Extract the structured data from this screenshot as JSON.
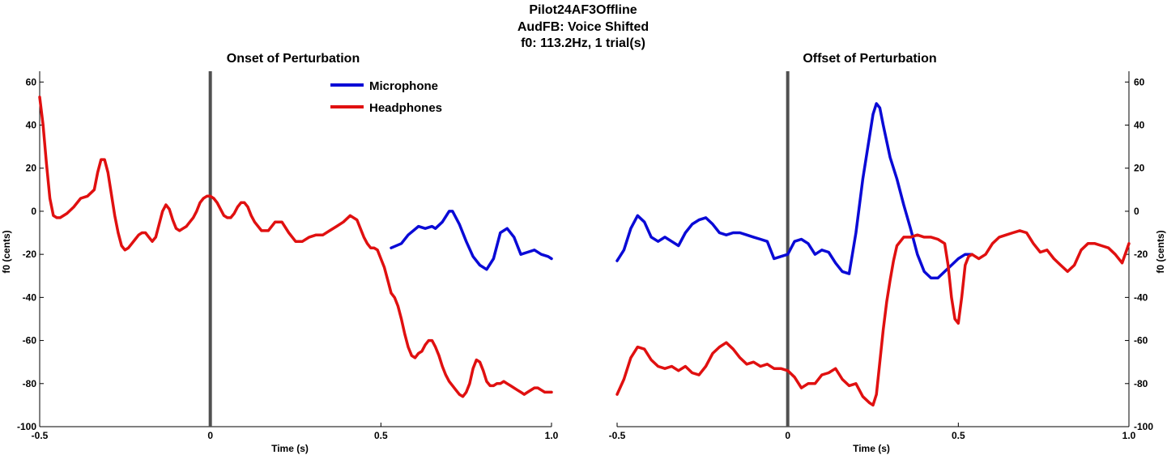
{
  "figure": {
    "title_lines": [
      "Pilot24AF3Offline",
      "AudFB: Voice Shifted",
      "f0: 113.2Hz, 1 trial(s)"
    ]
  },
  "colors": {
    "microphone": "#0a0ad6",
    "headphones": "#e01010",
    "event_line": "#505050"
  },
  "chart_data": [
    {
      "type": "line",
      "title": "Onset of Perturbation",
      "xlabel": "Time (s)",
      "ylabel": "f0 (cents)",
      "xlim": [
        -0.5,
        1.0
      ],
      "ylim": [
        -100,
        65
      ],
      "xticks": [
        -0.5,
        0,
        0.5,
        1.0
      ],
      "xtick_labels": [
        "-0.5",
        "0",
        "0.5",
        "1.0"
      ],
      "yticks": [
        -100,
        -80,
        -60,
        -40,
        -20,
        0,
        20,
        40,
        60
      ],
      "yaxis_side": "left",
      "grid": false,
      "vline_x": 0,
      "legend": {
        "position": "top-center",
        "entries": [
          "Microphone",
          "Headphones"
        ]
      },
      "series": [
        {
          "name": "Microphone",
          "color_key": "microphone",
          "x": [
            0.53,
            0.56,
            0.58,
            0.61,
            0.63,
            0.65,
            0.66,
            0.68,
            0.7,
            0.71,
            0.73,
            0.75,
            0.77,
            0.79,
            0.81,
            0.83,
            0.85,
            0.87,
            0.89,
            0.91,
            0.93,
            0.95,
            0.97,
            0.99,
            1.0
          ],
          "y": [
            -17,
            -15,
            -11,
            -7,
            -8,
            -7,
            -8,
            -5,
            0,
            0,
            -6,
            -14,
            -21,
            -25,
            -27,
            -22,
            -10,
            -8,
            -12,
            -20,
            -19,
            -18,
            -20,
            -21,
            -22
          ]
        },
        {
          "name": "Headphones",
          "x": [
            -0.5,
            -0.49,
            -0.48,
            -0.47,
            -0.46,
            -0.45,
            -0.44,
            -0.42,
            -0.4,
            -0.38,
            -0.36,
            -0.34,
            -0.33,
            -0.32,
            -0.31,
            -0.3,
            -0.29,
            -0.28,
            -0.27,
            -0.26,
            -0.25,
            -0.24,
            -0.23,
            -0.22,
            -0.21,
            -0.2,
            -0.19,
            -0.18,
            -0.17,
            -0.16,
            -0.15,
            -0.14,
            -0.13,
            -0.12,
            -0.11,
            -0.1,
            -0.09,
            -0.08,
            -0.07,
            -0.06,
            -0.05,
            -0.04,
            -0.03,
            -0.02,
            -0.01,
            0.0,
            0.01,
            0.02,
            0.03,
            0.04,
            0.05,
            0.06,
            0.07,
            0.08,
            0.09,
            0.1,
            0.11,
            0.12,
            0.13,
            0.15,
            0.17,
            0.19,
            0.21,
            0.23,
            0.25,
            0.27,
            0.29,
            0.31,
            0.33,
            0.35,
            0.37,
            0.39,
            0.41,
            0.43,
            0.45,
            0.46,
            0.47,
            0.48,
            0.49,
            0.5,
            0.51,
            0.52,
            0.53,
            0.54,
            0.55,
            0.56,
            0.57,
            0.58,
            0.59,
            0.6,
            0.61,
            0.62,
            0.63,
            0.64,
            0.65,
            0.66,
            0.67,
            0.68,
            0.69,
            0.7,
            0.71,
            0.72,
            0.73,
            0.74,
            0.75,
            0.76,
            0.77,
            0.78,
            0.79,
            0.8,
            0.81,
            0.82,
            0.83,
            0.84,
            0.85,
            0.86,
            0.87,
            0.88,
            0.89,
            0.9,
            0.91,
            0.92,
            0.93,
            0.94,
            0.95,
            0.96,
            0.97,
            0.98,
            0.99,
            1.0
          ],
          "color_key": "headphones",
          "y": [
            53,
            40,
            22,
            6,
            -2,
            -3,
            -3,
            -1,
            2,
            6,
            7,
            10,
            18,
            24,
            24,
            18,
            8,
            -2,
            -10,
            -16,
            -18,
            -17,
            -15,
            -13,
            -11,
            -10,
            -10,
            -12,
            -14,
            -12,
            -6,
            0,
            3,
            1,
            -4,
            -8,
            -9,
            -8,
            -7,
            -5,
            -3,
            0,
            4,
            6,
            7,
            7,
            6,
            4,
            1,
            -2,
            -3,
            -3,
            -1,
            2,
            4,
            4,
            2,
            -2,
            -5,
            -9,
            -9,
            -5,
            -5,
            -10,
            -14,
            -14,
            -12,
            -11,
            -11,
            -9,
            -7,
            -5,
            -2,
            -4,
            -12,
            -15,
            -17,
            -17,
            -18,
            -22,
            -26,
            -32,
            -38,
            -40,
            -44,
            -50,
            -57,
            -63,
            -67,
            -68,
            -66,
            -65,
            -62,
            -60,
            -60,
            -63,
            -67,
            -72,
            -76,
            -79,
            -81,
            -83,
            -85,
            -86,
            -84,
            -80,
            -73,
            -69,
            -70,
            -74,
            -79,
            -81,
            -81,
            -80,
            -80,
            -79,
            -80,
            -81,
            -82,
            -83,
            -84,
            -85,
            -84,
            -83,
            -82,
            -82,
            -83,
            -84,
            -84,
            -84
          ]
        }
      ]
    },
    {
      "type": "line",
      "title": "Offset of Perturbation",
      "xlabel": "Time (s)",
      "ylabel": "f0 (cents)",
      "xlim": [
        -0.5,
        1.0
      ],
      "ylim": [
        -100,
        65
      ],
      "xticks": [
        -0.5,
        0,
        0.5,
        1.0
      ],
      "xtick_labels": [
        "-0.5",
        "0",
        "0.5",
        "1.0"
      ],
      "yticks": [
        -100,
        -80,
        -60,
        -40,
        -20,
        0,
        20,
        40,
        60
      ],
      "yaxis_side": "right",
      "grid": false,
      "vline_x": 0,
      "series": [
        {
          "name": "Microphone",
          "color_key": "microphone",
          "x": [
            -0.5,
            -0.48,
            -0.46,
            -0.44,
            -0.42,
            -0.4,
            -0.38,
            -0.36,
            -0.34,
            -0.32,
            -0.3,
            -0.28,
            -0.26,
            -0.24,
            -0.22,
            -0.2,
            -0.18,
            -0.16,
            -0.14,
            -0.12,
            -0.1,
            -0.08,
            -0.06,
            -0.04,
            -0.02,
            0.0,
            0.02,
            0.04,
            0.06,
            0.08,
            0.1,
            0.12,
            0.14,
            0.16,
            0.18,
            0.2,
            0.22,
            0.24,
            0.25,
            0.26,
            0.27,
            0.28,
            0.3,
            0.32,
            0.34,
            0.36,
            0.38,
            0.4,
            0.42,
            0.44,
            0.46,
            0.48,
            0.5,
            0.52,
            0.54
          ],
          "y": [
            -23,
            -18,
            -8,
            -2,
            -5,
            -12,
            -14,
            -12,
            -14,
            -16,
            -10,
            -6,
            -4,
            -3,
            -6,
            -10,
            -11,
            -10,
            -10,
            -11,
            -12,
            -13,
            -14,
            -22,
            -21,
            -20,
            -14,
            -13,
            -15,
            -20,
            -18,
            -19,
            -24,
            -28,
            -29,
            -10,
            15,
            35,
            45,
            50,
            48,
            40,
            25,
            15,
            3,
            -8,
            -20,
            -28,
            -31,
            -31,
            -28,
            -25,
            -22,
            -20,
            -20
          ]
        },
        {
          "name": "Headphones",
          "color_key": "headphones",
          "x": [
            -0.5,
            -0.48,
            -0.46,
            -0.44,
            -0.42,
            -0.4,
            -0.38,
            -0.36,
            -0.34,
            -0.32,
            -0.3,
            -0.28,
            -0.26,
            -0.24,
            -0.22,
            -0.2,
            -0.18,
            -0.16,
            -0.14,
            -0.12,
            -0.1,
            -0.08,
            -0.06,
            -0.04,
            -0.02,
            0.0,
            0.02,
            0.04,
            0.06,
            0.08,
            0.1,
            0.12,
            0.14,
            0.16,
            0.18,
            0.2,
            0.22,
            0.24,
            0.25,
            0.26,
            0.27,
            0.28,
            0.29,
            0.3,
            0.31,
            0.32,
            0.34,
            0.36,
            0.38,
            0.4,
            0.42,
            0.44,
            0.46,
            0.47,
            0.48,
            0.49,
            0.5,
            0.51,
            0.52,
            0.53,
            0.54,
            0.56,
            0.58,
            0.6,
            0.62,
            0.64,
            0.66,
            0.68,
            0.7,
            0.72,
            0.74,
            0.76,
            0.78,
            0.8,
            0.82,
            0.84,
            0.86,
            0.88,
            0.9,
            0.92,
            0.94,
            0.96,
            0.98,
            1.0
          ],
          "y": [
            -85,
            -78,
            -68,
            -63,
            -64,
            -69,
            -72,
            -73,
            -72,
            -74,
            -72,
            -75,
            -76,
            -72,
            -66,
            -63,
            -61,
            -64,
            -68,
            -71,
            -70,
            -72,
            -71,
            -73,
            -73,
            -74,
            -77,
            -82,
            -80,
            -80,
            -76,
            -75,
            -73,
            -78,
            -81,
            -80,
            -86,
            -89,
            -90,
            -85,
            -70,
            -55,
            -42,
            -32,
            -23,
            -16,
            -12,
            -12,
            -11,
            -12,
            -12,
            -13,
            -15,
            -25,
            -40,
            -50,
            -52,
            -40,
            -25,
            -21,
            -20,
            -22,
            -20,
            -15,
            -12,
            -11,
            -10,
            -9,
            -10,
            -15,
            -19,
            -18,
            -22,
            -25,
            -28,
            -25,
            -18,
            -15,
            -15,
            -16,
            -17,
            -20,
            -24,
            -15
          ]
        }
      ]
    }
  ]
}
